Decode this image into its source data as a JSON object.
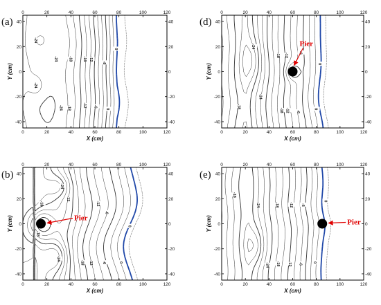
{
  "chart_data": [
    {
      "panel_label": "(a)",
      "type": "contour",
      "xlabel": "X (cm)",
      "ylabel": "Y (cm)",
      "xlim": [
        0,
        120
      ],
      "ylim": [
        -45,
        45
      ],
      "xticks": [
        "0",
        "20",
        "40",
        "60",
        "80",
        "100",
        "120"
      ],
      "yticks": [
        "40",
        "20",
        "0",
        "-20",
        "-40"
      ],
      "contour_labels": [
        {
          "text": "-24",
          "x": 11,
          "y": 25
        },
        {
          "text": "-24",
          "x": 28,
          "y": 10
        },
        {
          "text": "-24",
          "x": 11,
          "y": -11
        },
        {
          "text": "-24",
          "x": 32,
          "y": -29
        },
        {
          "text": "-18",
          "x": 40,
          "y": 10
        },
        {
          "text": "-18",
          "x": 39,
          "y": -29
        },
        {
          "text": "-16",
          "x": 52,
          "y": 10
        },
        {
          "text": "-12",
          "x": 57,
          "y": 10
        },
        {
          "text": "-12",
          "x": 52,
          "y": -27
        },
        {
          "text": "-8",
          "x": 68,
          "y": 7
        },
        {
          "text": "-6",
          "x": 61,
          "y": -28
        },
        {
          "text": "0",
          "x": 78,
          "y": 18
        },
        {
          "text": "0",
          "x": 71,
          "y": -30
        }
      ],
      "pier": null
    },
    {
      "panel_label": "(b)",
      "type": "contour",
      "xlabel": "X (cm)",
      "ylabel": "Y (cm)",
      "xlim": [
        0,
        120
      ],
      "ylim": [
        -45,
        45
      ],
      "xticks": [
        "0",
        "20",
        "40",
        "60",
        "80",
        "100",
        "120"
      ],
      "yticks": [
        "40",
        "20",
        "0",
        "-20",
        "-40"
      ],
      "contour_labels": [
        {
          "text": "-24",
          "x": 33,
          "y": 30
        },
        {
          "text": "-18",
          "x": 16,
          "y": 16
        },
        {
          "text": "-12",
          "x": 38,
          "y": 20
        },
        {
          "text": "-12",
          "x": 63,
          "y": 16
        },
        {
          "text": "-6",
          "x": 70,
          "y": 9
        },
        {
          "text": "0",
          "x": 89,
          "y": -2
        },
        {
          "text": "-18",
          "x": 13,
          "y": -8
        },
        {
          "text": "-24",
          "x": 30,
          "y": -28
        },
        {
          "text": "-18",
          "x": 50,
          "y": -31
        },
        {
          "text": "-12",
          "x": 57,
          "y": -31
        },
        {
          "text": "-6",
          "x": 68,
          "y": -31
        },
        {
          "text": "0",
          "x": 82,
          "y": -31
        }
      ],
      "pier": {
        "label": "Pier",
        "x": 15,
        "y": 0
      }
    },
    {
      "panel_label": "(d)",
      "type": "contour",
      "xlabel": "X (cm)",
      "ylabel": "Y (cm)",
      "xlim": [
        0,
        120
      ],
      "ylim": [
        -45,
        45
      ],
      "xticks": [
        "0",
        "20",
        "40",
        "60",
        "80",
        "100",
        "120"
      ],
      "yticks": [
        "40",
        "20",
        "0",
        "-20",
        "-40"
      ],
      "contour_labels": [
        {
          "text": "-24",
          "x": 27,
          "y": 20
        },
        {
          "text": "-18",
          "x": 48,
          "y": 13
        },
        {
          "text": "-12",
          "x": 55,
          "y": 13
        },
        {
          "text": "-6",
          "x": 67,
          "y": 15
        },
        {
          "text": "0",
          "x": 83,
          "y": 6
        },
        {
          "text": "-18",
          "x": 15,
          "y": -28
        },
        {
          "text": "-24",
          "x": 33,
          "y": -20
        },
        {
          "text": "-18",
          "x": 51,
          "y": -31
        },
        {
          "text": "-12",
          "x": 56,
          "y": -31
        },
        {
          "text": "-6",
          "x": 65,
          "y": -32
        },
        {
          "text": "0",
          "x": 80,
          "y": -30
        }
      ],
      "pier": {
        "label": "Pier",
        "x": 60,
        "y": 0
      }
    },
    {
      "panel_label": "(e)",
      "type": "contour",
      "xlabel": "X (cm)",
      "ylabel": "Y (cm)",
      "xlim": [
        0,
        120
      ],
      "ylim": [
        -45,
        45
      ],
      "xticks": [
        "0",
        "20",
        "40",
        "60",
        "80",
        "100",
        "120"
      ],
      "yticks": [
        "40",
        "20",
        "0",
        "-20",
        "-40"
      ],
      "contour_labels": [
        {
          "text": "-18",
          "x": 11,
          "y": 23
        },
        {
          "text": "-24",
          "x": 31,
          "y": 15
        },
        {
          "text": "-18",
          "x": 47,
          "y": 15
        },
        {
          "text": "-12",
          "x": 59,
          "y": 15
        },
        {
          "text": "-6",
          "x": 69,
          "y": 15
        },
        {
          "text": "0",
          "x": 88,
          "y": 18
        },
        {
          "text": "-24",
          "x": 39,
          "y": -33
        },
        {
          "text": "-18",
          "x": 48,
          "y": -32
        },
        {
          "text": "-12",
          "x": 58,
          "y": -32
        },
        {
          "text": "-6",
          "x": 67,
          "y": -32
        },
        {
          "text": "0",
          "x": 79,
          "y": -31
        }
      ],
      "pier": {
        "label": "Pier",
        "x": 85,
        "y": 0
      }
    }
  ]
}
